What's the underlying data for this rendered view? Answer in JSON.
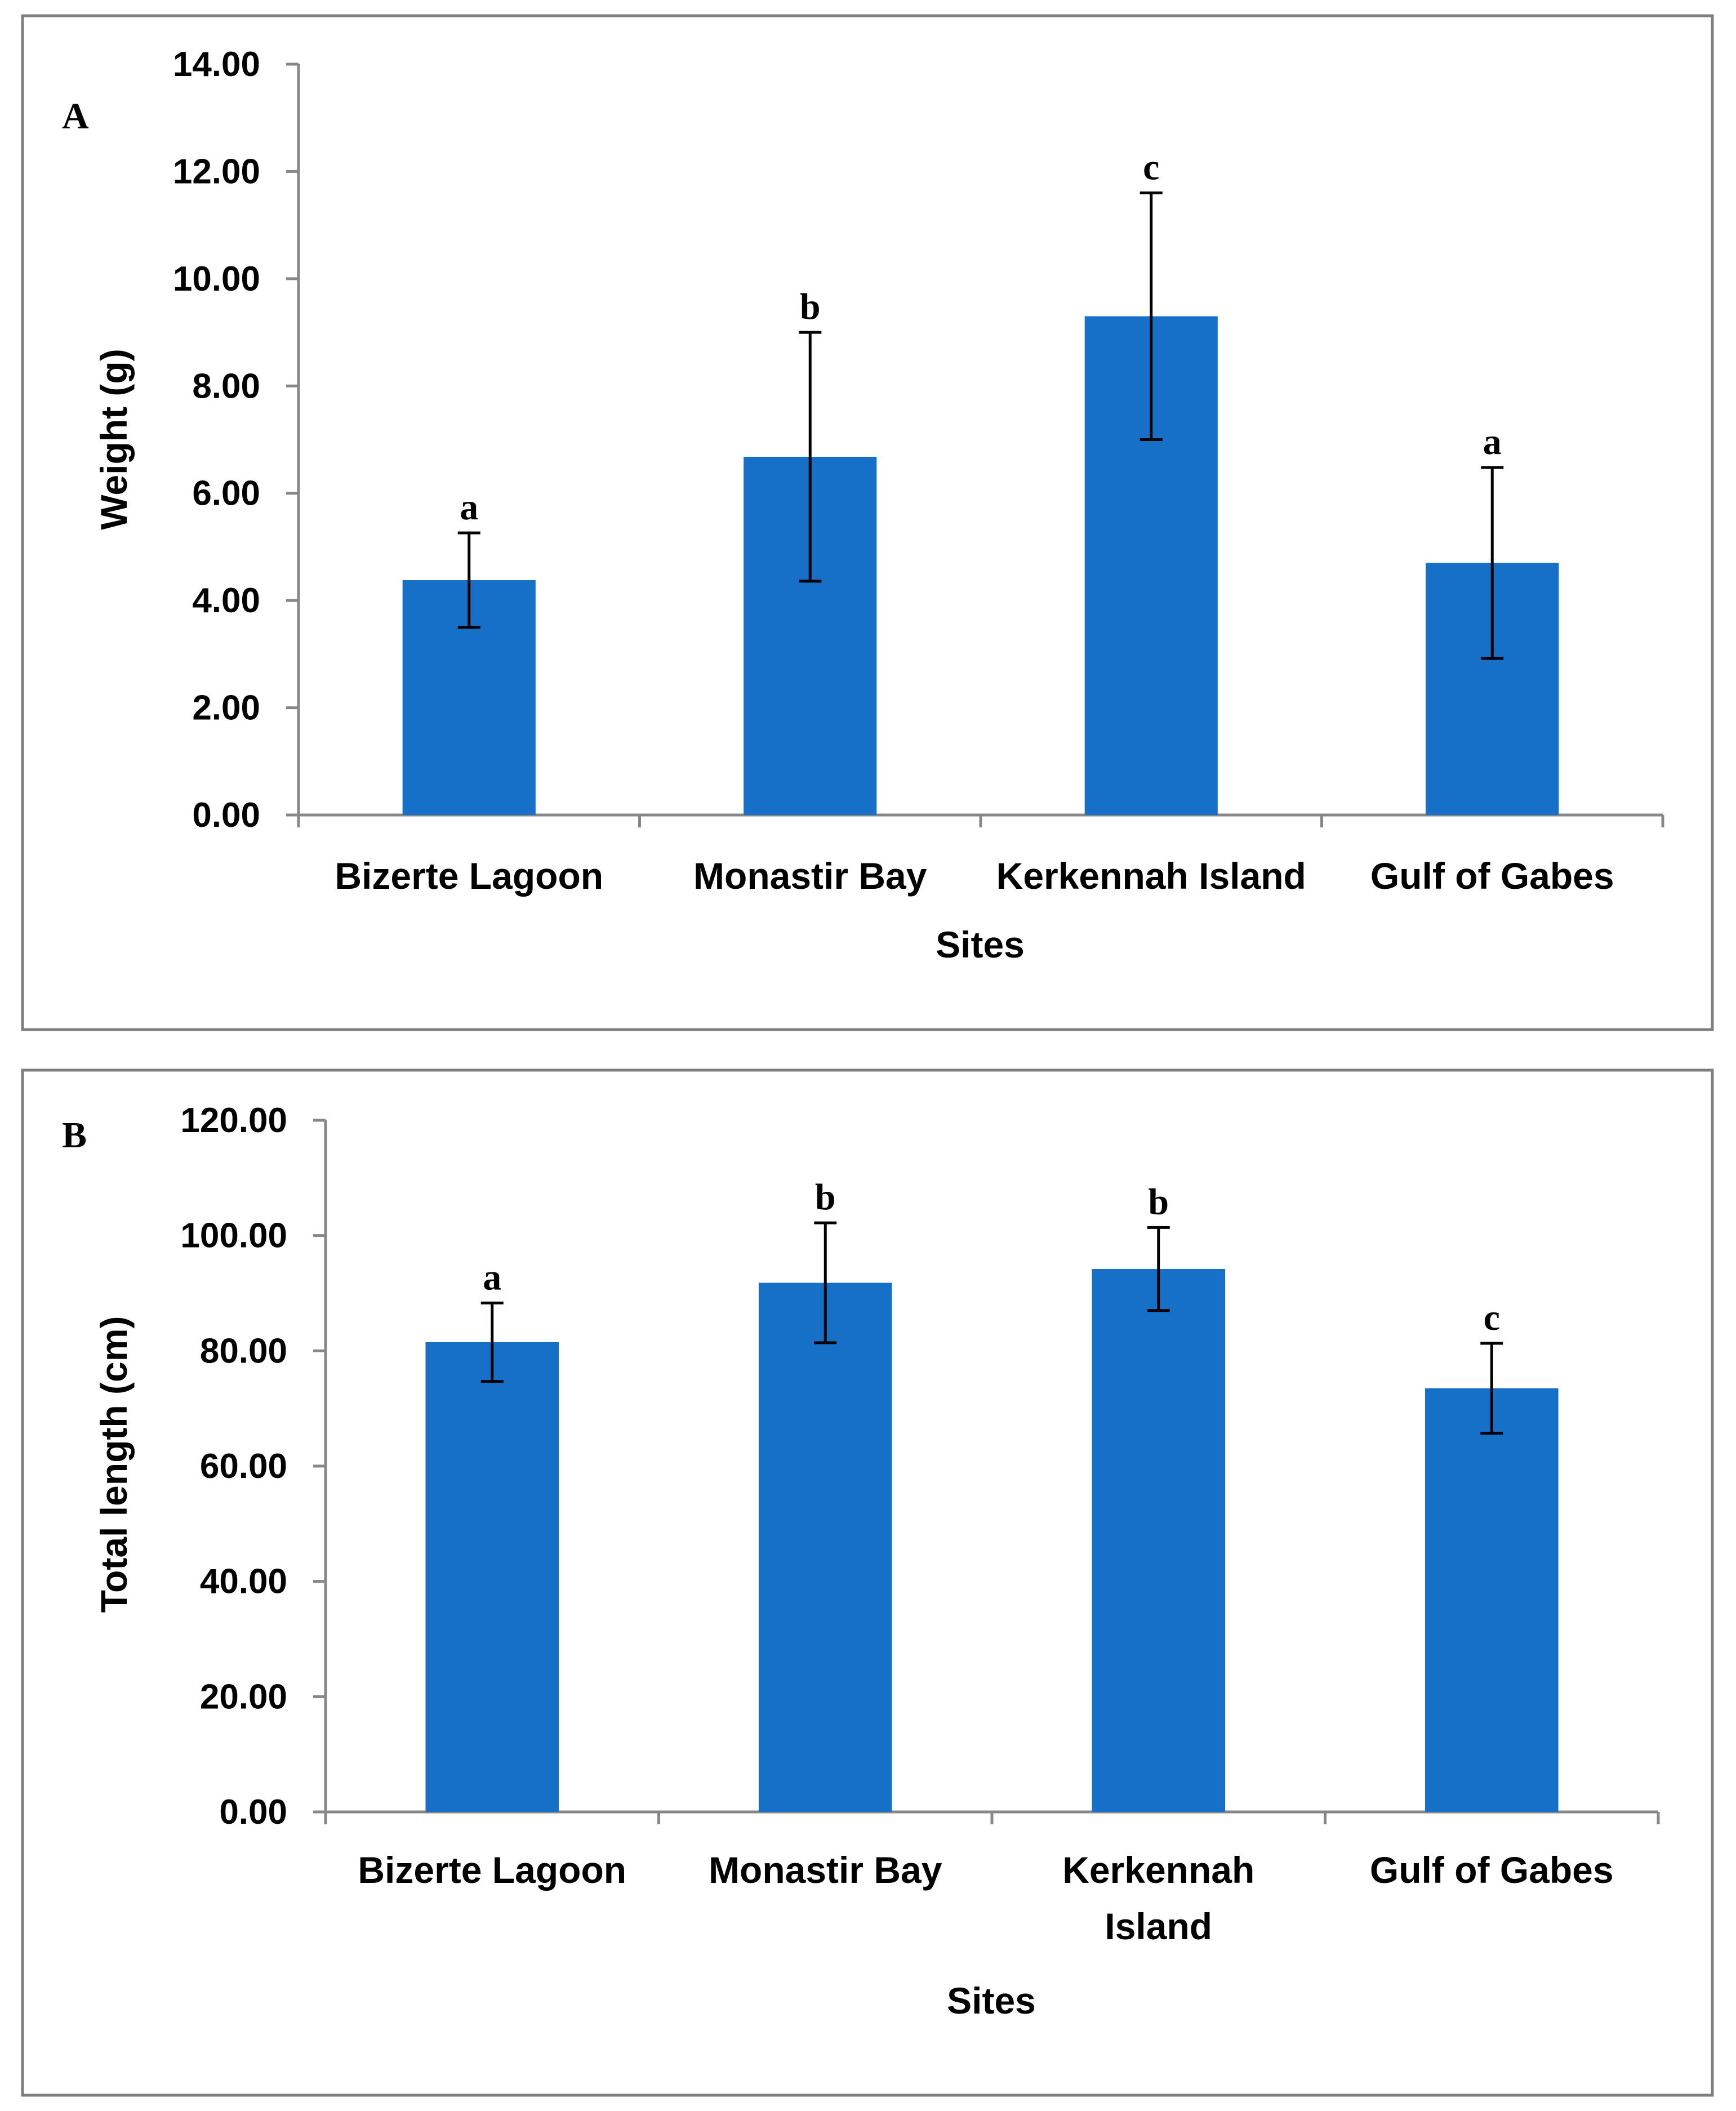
{
  "colors": {
    "bar": "#1670c8",
    "axis": "#878787",
    "frame": "#7f7f7f"
  },
  "chart_data": [
    {
      "type": "bar",
      "panel_label": "A",
      "title": "",
      "xlabel": "Sites",
      "ylabel": "Weight (g)",
      "ylim": [
        0,
        14
      ],
      "yticks": [
        0,
        2,
        4,
        6,
        8,
        10,
        12,
        14
      ],
      "ytick_labels": [
        "0.00",
        "2.00",
        "4.00",
        "6.00",
        "8.00",
        "10.00",
        "12.00",
        "14.00"
      ],
      "categories": [
        [
          "Bizerte Lagoon"
        ],
        [
          "Monastir Bay"
        ],
        [
          "Kerkennah Island"
        ],
        [
          "Gulf of Gabes"
        ]
      ],
      "values": [
        4.38,
        6.68,
        9.3,
        4.7
      ],
      "errors": [
        0.88,
        2.32,
        2.3,
        1.78
      ],
      "significance": [
        "a",
        "b",
        "c",
        "a"
      ],
      "grid": false,
      "legend": null
    },
    {
      "type": "bar",
      "panel_label": "B",
      "title": "",
      "xlabel": "Sites",
      "ylabel": "Total length (cm)",
      "ylim": [
        0,
        120
      ],
      "yticks": [
        0,
        20,
        40,
        60,
        80,
        100,
        120
      ],
      "ytick_labels": [
        "0.00",
        "20.00",
        "40.00",
        "60.00",
        "80.00",
        "100.00",
        "120.00"
      ],
      "categories": [
        [
          "Bizerte Lagoon"
        ],
        [
          "Monastir Bay"
        ],
        [
          "Kerkennah",
          "Island"
        ],
        [
          "Gulf of Gabes"
        ]
      ],
      "values": [
        81.5,
        91.8,
        94.2,
        73.5
      ],
      "errors": [
        6.8,
        10.4,
        7.2,
        7.8
      ],
      "significance": [
        "a",
        "b",
        "b",
        "c"
      ],
      "grid": false,
      "legend": null
    }
  ]
}
